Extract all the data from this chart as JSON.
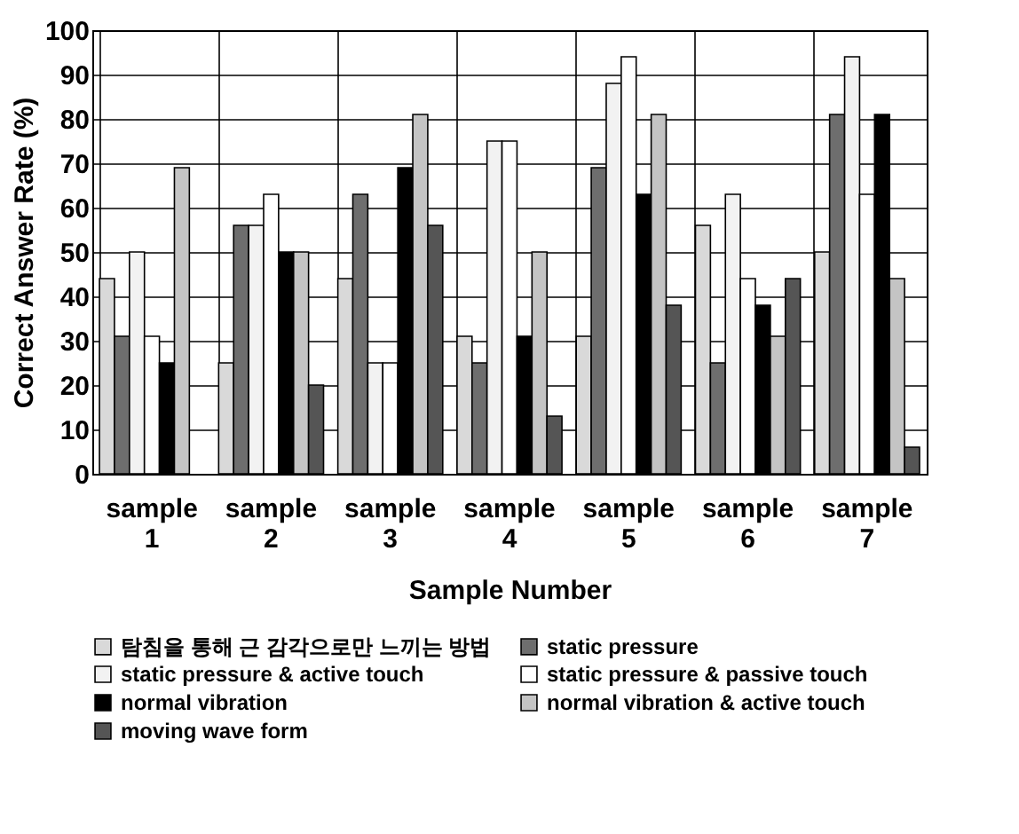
{
  "chart_data": {
    "type": "bar",
    "xlabel": "Sample Number",
    "ylabel": "Correct Answer Rate (%)",
    "categories": [
      "sample 1",
      "sample 2",
      "sample 3",
      "sample 4",
      "sample 5",
      "sample 6",
      "sample 7"
    ],
    "series": [
      {
        "name": "탐침을 통해 근 감각으로만 느끼는 방법",
        "color": "#d9d9d9",
        "values": [
          44,
          25,
          44,
          31,
          31,
          56,
          50
        ]
      },
      {
        "name": "static pressure",
        "color": "#6e6e6e",
        "values": [
          31,
          56,
          63,
          25,
          69,
          25,
          81
        ]
      },
      {
        "name": "static pressure & active touch",
        "color": "#f2f2f2",
        "values": [
          50,
          56,
          25,
          75,
          88,
          63,
          94
        ]
      },
      {
        "name": "static pressure & passive touch",
        "color": "#ffffff",
        "values": [
          31,
          63,
          25,
          75,
          94,
          44,
          63
        ]
      },
      {
        "name": "normal vibration",
        "color": "#000000",
        "values": [
          25,
          50,
          69,
          31,
          63,
          38,
          81
        ]
      },
      {
        "name": "normal vibration & active touch",
        "color": "#c4c4c4",
        "values": [
          69,
          50,
          81,
          50,
          81,
          31,
          44
        ]
      },
      {
        "name": "moving wave form",
        "color": "#555555",
        "values": [
          null,
          20,
          56,
          13,
          38,
          44,
          6
        ]
      }
    ],
    "ylim": [
      0,
      100
    ],
    "yticks": [
      0,
      10,
      20,
      30,
      40,
      50,
      60,
      70,
      80,
      90,
      100
    ],
    "grid": true,
    "legend": "bottom"
  }
}
